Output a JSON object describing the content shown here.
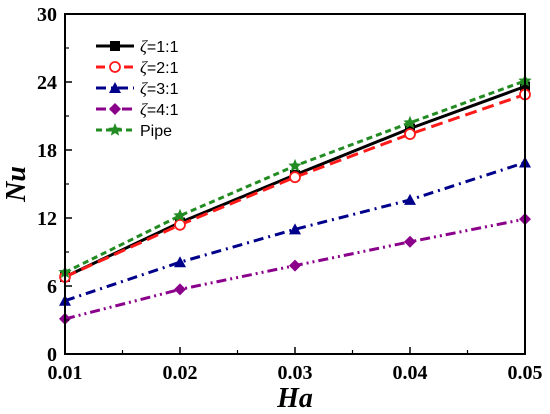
{
  "chart_data": {
    "type": "line",
    "xlabel": "Ha",
    "ylabel": "Nu",
    "xlim": [
      0.01,
      0.05
    ],
    "ylim": [
      0,
      30
    ],
    "x_ticks": [
      "0.01",
      "0.02",
      "0.03",
      "0.04",
      "0.05"
    ],
    "y_ticks": [
      "0",
      "6",
      "12",
      "18",
      "24",
      "30"
    ],
    "grid": false,
    "legend_position": "top-left",
    "x": [
      0.01,
      0.02,
      0.03,
      0.04,
      0.05
    ],
    "series": [
      {
        "name": "ζ=1:1",
        "name_prefix": "ζ",
        "name_suffix": "=1:1",
        "values": [
          6.8,
          11.6,
          15.8,
          19.9,
          23.6
        ],
        "color": "#000000",
        "dash": "solid",
        "marker": "square"
      },
      {
        "name": "ζ=2:1",
        "name_prefix": "ζ",
        "name_suffix": "=2:1",
        "values": [
          6.8,
          11.4,
          15.6,
          19.4,
          22.9
        ],
        "color": "#ff1a1a",
        "dash": "dash",
        "marker": "circle-open"
      },
      {
        "name": "ζ=3:1",
        "name_prefix": "ζ",
        "name_suffix": "=3:1",
        "values": [
          4.7,
          8.1,
          11.0,
          13.6,
          16.9
        ],
        "color": "#00008b",
        "dash": "dashdot",
        "marker": "triangle"
      },
      {
        "name": "ζ=4:1",
        "name_prefix": "ζ",
        "name_suffix": "=4:1",
        "values": [
          3.1,
          5.7,
          7.8,
          9.9,
          11.9
        ],
        "color": "#8b008b",
        "dash": "dashdotdot",
        "marker": "diamond"
      },
      {
        "name": "Pipe",
        "name_prefix": "",
        "name_suffix": "Pipe",
        "values": [
          7.2,
          12.2,
          16.6,
          20.4,
          24.1
        ],
        "color": "#228b22",
        "dash": "shortdash",
        "marker": "star"
      }
    ]
  }
}
